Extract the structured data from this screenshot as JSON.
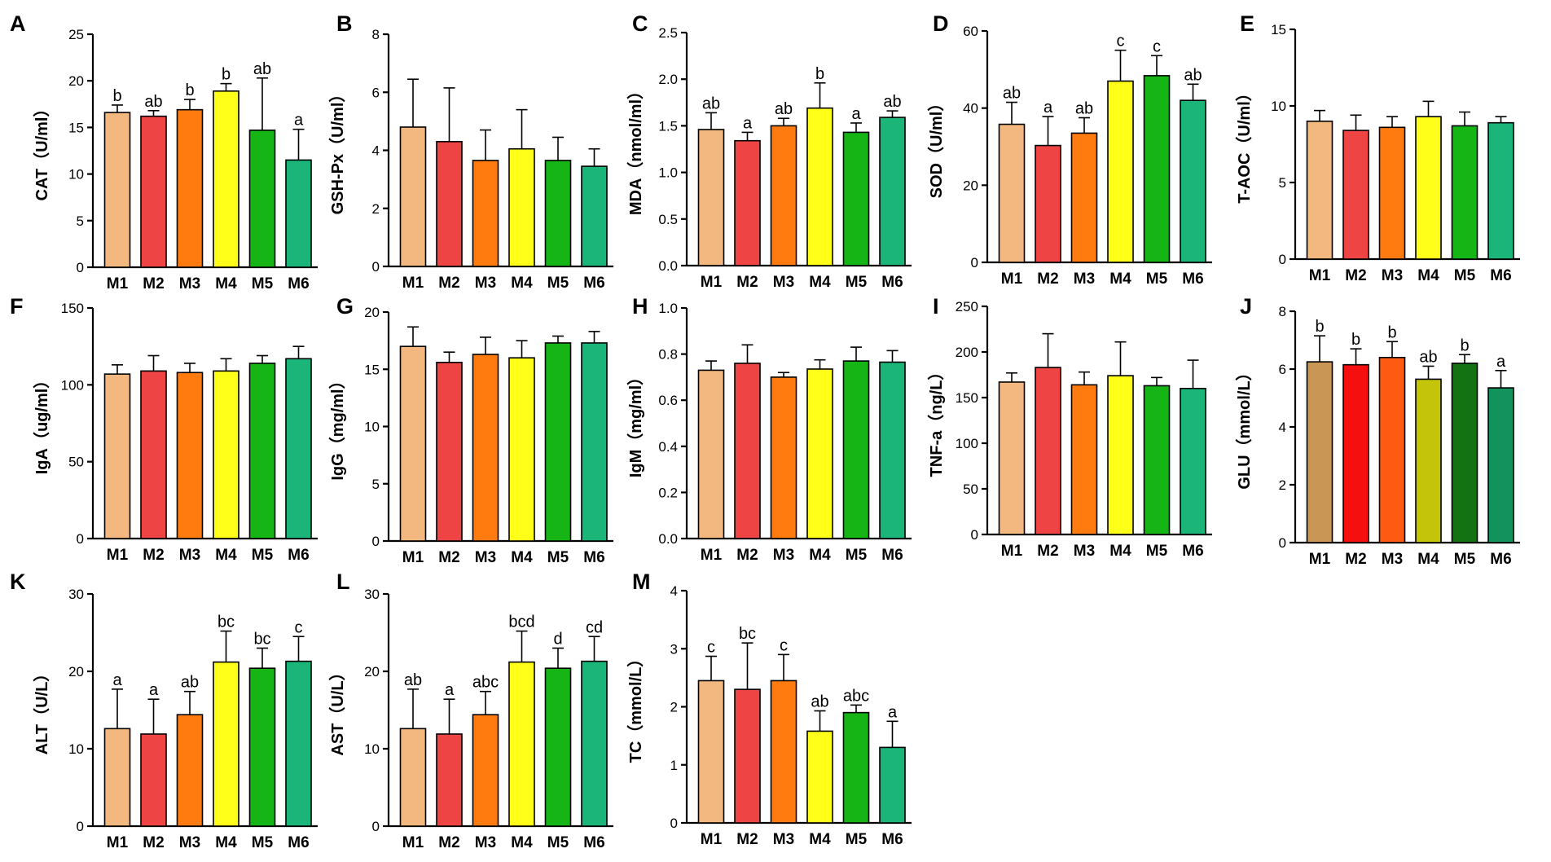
{
  "categories": [
    "M1",
    "M2",
    "M3",
    "M4",
    "M5",
    "M6"
  ],
  "palettes": {
    "standard": [
      "#F2B880",
      "#EE4444",
      "#FF7A0F",
      "#FFFF1A",
      "#14B514",
      "#1BB57A"
    ],
    "glu": [
      "#C99655",
      "#F50F0F",
      "#FF5A12",
      "#C4C40A",
      "#137312",
      "#12935E"
    ]
  },
  "chart_data": [
    {
      "panel": "A",
      "type": "bar",
      "ylabel": "CAT（U/ml）",
      "ylim": [
        0,
        25
      ],
      "yticks": [
        "0",
        "5",
        "10",
        "15",
        "20",
        "25"
      ],
      "values": [
        16.6,
        16.2,
        16.9,
        18.9,
        14.7,
        11.5
      ],
      "errors": [
        0.8,
        0.6,
        1.1,
        0.8,
        5.6,
        3.3
      ],
      "letters": [
        "b",
        "ab",
        "b",
        "b",
        "ab",
        "a"
      ]
    },
    {
      "panel": "B",
      "type": "bar",
      "ylabel": "GSH-Px（U/ml）",
      "ylim": [
        0,
        8
      ],
      "yticks": [
        "0",
        "2",
        "4",
        "6",
        "8"
      ],
      "values": [
        4.8,
        4.3,
        3.65,
        4.05,
        3.65,
        3.45
      ],
      "errors": [
        1.65,
        1.85,
        1.05,
        1.35,
        0.8,
        0.6
      ],
      "letters": [
        "",
        "",
        "",
        "",
        "",
        ""
      ]
    },
    {
      "panel": "C",
      "type": "bar",
      "ylabel": "MDA（nmol/ml）",
      "ylim": [
        0,
        2.5
      ],
      "yticks": [
        "0.0",
        "0.5",
        "1.0",
        "1.5",
        "2.0",
        "2.5"
      ],
      "values": [
        1.46,
        1.34,
        1.5,
        1.69,
        1.43,
        1.59
      ],
      "errors": [
        0.18,
        0.09,
        0.08,
        0.27,
        0.1,
        0.07
      ],
      "letters": [
        "ab",
        "a",
        "ab",
        "b",
        "a",
        "ab"
      ]
    },
    {
      "panel": "D",
      "type": "bar",
      "ylabel": "SOD（U/ml）",
      "ylim": [
        0,
        60
      ],
      "yticks": [
        "0",
        "20",
        "40",
        "60"
      ],
      "values": [
        35.8,
        30.3,
        33.5,
        47.0,
        48.4,
        42.0
      ],
      "errors": [
        5.7,
        7.5,
        4.0,
        8.0,
        5.2,
        4.2
      ],
      "letters": [
        "ab",
        "a",
        "ab",
        "c",
        "c",
        "ab"
      ]
    },
    {
      "panel": "E",
      "type": "bar",
      "ylabel": "T-AOC（U/ml）",
      "ylim": [
        0,
        15
      ],
      "yticks": [
        "0",
        "5",
        "10",
        "15"
      ],
      "values": [
        9.0,
        8.4,
        8.6,
        9.3,
        8.7,
        8.9
      ],
      "errors": [
        0.7,
        1.0,
        0.7,
        1.0,
        0.9,
        0.4
      ],
      "letters": [
        "",
        "",
        "",
        "",
        "",
        ""
      ]
    },
    {
      "panel": "F",
      "type": "bar",
      "ylabel": "IgA（ug/ml）",
      "ylim": [
        0,
        150
      ],
      "yticks": [
        "0",
        "50",
        "100",
        "150"
      ],
      "values": [
        107,
        109,
        108,
        109,
        114,
        117
      ],
      "errors": [
        6,
        10,
        6,
        8,
        5,
        8
      ],
      "letters": [
        "",
        "",
        "",
        "",
        "",
        ""
      ]
    },
    {
      "panel": "G",
      "type": "bar",
      "ylabel": "IgG（mg/ml）",
      "ylim": [
        0,
        20
      ],
      "yticks": [
        "0",
        "5",
        "10",
        "15",
        "20"
      ],
      "values": [
        17.0,
        15.6,
        16.3,
        16.0,
        17.3,
        17.3
      ],
      "errors": [
        1.7,
        0.9,
        1.5,
        1.5,
        0.6,
        1.0
      ],
      "letters": [
        "",
        "",
        "",
        "",
        "",
        ""
      ]
    },
    {
      "panel": "H",
      "type": "bar",
      "ylabel": "IgM（mg/ml）",
      "ylim": [
        0,
        1.0
      ],
      "yticks": [
        "0.0",
        "0.2",
        "0.4",
        "0.6",
        "0.8",
        "1.0"
      ],
      "values": [
        0.73,
        0.76,
        0.7,
        0.735,
        0.77,
        0.765
      ],
      "errors": [
        0.04,
        0.08,
        0.02,
        0.04,
        0.06,
        0.05
      ],
      "letters": [
        "",
        "",
        "",
        "",
        "",
        ""
      ]
    },
    {
      "panel": "I",
      "type": "bar",
      "ylabel": "TNF-a（ng/L）",
      "ylim": [
        0,
        250
      ],
      "yticks": [
        "0",
        "50",
        "100",
        "150",
        "200",
        "250"
      ],
      "values": [
        167,
        183,
        164,
        174,
        163,
        160
      ],
      "errors": [
        10,
        37,
        14,
        37,
        9,
        31
      ],
      "letters": [
        "",
        "",
        "",
        "",
        "",
        ""
      ]
    },
    {
      "panel": "J",
      "type": "bar",
      "ylabel": "GLU（mmol/L）",
      "ylim": [
        0,
        8
      ],
      "yticks": [
        "0",
        "2",
        "4",
        "6",
        "8"
      ],
      "palette": "glu",
      "values": [
        6.25,
        6.15,
        6.4,
        5.65,
        6.2,
        5.35
      ],
      "errors": [
        0.9,
        0.55,
        0.55,
        0.45,
        0.3,
        0.6
      ],
      "letters": [
        "b",
        "b",
        "b",
        "ab",
        "b",
        "a"
      ]
    },
    {
      "panel": "K",
      "type": "bar",
      "ylabel": "ALT（U/L）",
      "ylim": [
        0,
        30
      ],
      "yticks": [
        "0",
        "10",
        "20",
        "30"
      ],
      "values": [
        12.6,
        11.9,
        14.4,
        21.2,
        20.4,
        21.3
      ],
      "errors": [
        5.1,
        4.5,
        3.0,
        4.0,
        2.6,
        3.2
      ],
      "letters": [
        "a",
        "a",
        "ab",
        "bc",
        "bc",
        "c"
      ]
    },
    {
      "panel": "L",
      "type": "bar",
      "ylabel": "AST（U/L）",
      "ylim": [
        0,
        30
      ],
      "yticks": [
        "0",
        "10",
        "20",
        "30"
      ],
      "values": [
        12.6,
        11.9,
        14.4,
        21.2,
        20.4,
        21.3
      ],
      "errors": [
        5.1,
        4.5,
        3.0,
        4.0,
        2.6,
        3.2
      ],
      "letters": [
        "ab",
        "a",
        "abc",
        "bcd",
        "d",
        "cd"
      ]
    },
    {
      "panel": "M",
      "type": "bar",
      "ylabel": "TC（mmol/L）",
      "ylim": [
        0,
        4
      ],
      "yticks": [
        "0",
        "1",
        "2",
        "3",
        "4"
      ],
      "values": [
        2.45,
        2.3,
        2.45,
        1.58,
        1.9,
        1.3
      ],
      "errors": [
        0.42,
        0.8,
        0.45,
        0.35,
        0.13,
        0.45
      ],
      "letters": [
        "c",
        "bc",
        "c",
        "ab",
        "abc",
        "a"
      ]
    }
  ]
}
